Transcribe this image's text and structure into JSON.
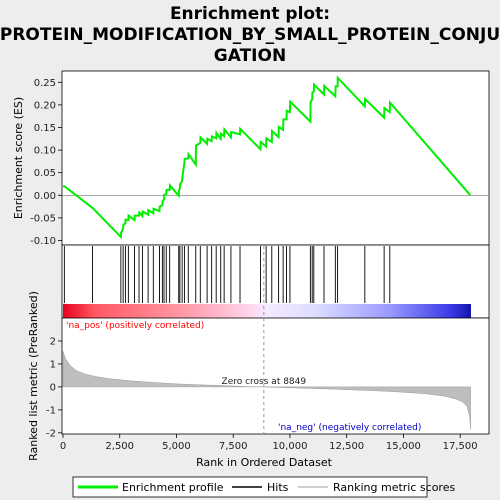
{
  "chart_data": {
    "type": "line",
    "title_lines": [
      "Enrichment plot:",
      "PROTEIN_MODIFICATION_BY_SMALL_PROTEIN_CONJU",
      "GATION"
    ],
    "top_panel": {
      "ylabel": "Enrichment score (ES)",
      "ylim": [
        -0.11,
        0.275
      ],
      "yticks": [
        -0.1,
        -0.05,
        0.0,
        0.05,
        0.1,
        0.15,
        0.2,
        0.25
      ],
      "ytick_labels": [
        "-0.10",
        "-0.05",
        "0.00",
        "0.05",
        "0.10",
        "0.15",
        "0.20",
        "0.25"
      ],
      "series": [
        {
          "name": "Enrichment profile",
          "color": "#00ff00",
          "x": [
            0,
            60,
            1300,
            2550,
            2560,
            2650,
            2660,
            2750,
            2760,
            2880,
            2890,
            3150,
            3160,
            3350,
            3360,
            3500,
            3510,
            3750,
            3760,
            3980,
            3990,
            4250,
            4260,
            4380,
            4390,
            4450,
            4460,
            4550,
            4560,
            4700,
            4710,
            5100,
            5110,
            5150,
            5160,
            5250,
            5260,
            5350,
            5360,
            5520,
            5530,
            5850,
            5860,
            6050,
            6060,
            6350,
            6360,
            6550,
            6560,
            6750,
            6760,
            6950,
            6960,
            7100,
            7110,
            7400,
            7410,
            7800,
            7810,
            8700,
            8710,
            8950,
            8960,
            9200,
            9210,
            9500,
            9510,
            9700,
            9710,
            9850,
            9860,
            10000,
            10010,
            10900,
            10910,
            10980,
            10990,
            11050,
            11060,
            11500,
            11510,
            12000,
            12010,
            12100,
            12110,
            13300,
            13310,
            14150,
            14160,
            14400,
            14410,
            17950
          ],
          "y": [
            0.02,
            0.02,
            -0.028,
            -0.092,
            -0.083,
            -0.074,
            -0.065,
            -0.062,
            -0.054,
            -0.055,
            -0.045,
            -0.055,
            -0.045,
            -0.045,
            -0.038,
            -0.046,
            -0.036,
            -0.043,
            -0.033,
            -0.04,
            -0.03,
            -0.035,
            -0.025,
            -0.022,
            -0.013,
            -0.009,
            0.001,
            0.002,
            0.012,
            0.012,
            0.022,
            -0.001,
            0.01,
            0.016,
            0.025,
            0.031,
            0.04,
            0.072,
            0.08,
            0.082,
            0.091,
            0.068,
            0.11,
            0.116,
            0.128,
            0.114,
            0.125,
            0.12,
            0.13,
            0.126,
            0.138,
            0.125,
            0.136,
            0.131,
            0.146,
            0.128,
            0.14,
            0.135,
            0.147,
            0.102,
            0.118,
            0.108,
            0.126,
            0.118,
            0.142,
            0.129,
            0.151,
            0.145,
            0.168,
            0.168,
            0.187,
            0.184,
            0.207,
            0.163,
            0.207,
            0.212,
            0.228,
            0.229,
            0.245,
            0.223,
            0.242,
            0.219,
            0.241,
            0.241,
            0.26,
            0.197,
            0.213,
            0.172,
            0.193,
            0.184,
            0.205,
            0.0
          ]
        }
      ]
    },
    "hits": {
      "name": "Hits",
      "color": "#000000",
      "x": [
        60,
        1300,
        2550,
        2650,
        2750,
        2880,
        3150,
        3350,
        3500,
        3750,
        3980,
        4250,
        4380,
        4450,
        4550,
        4700,
        5100,
        5150,
        5250,
        5350,
        5520,
        5850,
        6050,
        6350,
        6550,
        6750,
        6950,
        7100,
        7400,
        7800,
        8700,
        8950,
        9200,
        9500,
        9700,
        9850,
        10000,
        10900,
        10980,
        11050,
        11500,
        12000,
        12100,
        13300,
        14150,
        14400
      ]
    },
    "bottom_panel": {
      "name": "Ranking metric scores",
      "color": "#bebebe",
      "ylabel": "Ranked list metric (PreRanked)",
      "xlabel": "Rank in Ordered Dataset",
      "ylim": [
        -2.05,
        3.0
      ],
      "yticks": [
        -2,
        -1,
        0,
        1,
        2
      ],
      "ytick_labels": [
        "-2",
        "-1",
        "0",
        "1",
        "2"
      ],
      "xlim": [
        0,
        18000
      ],
      "xticks": [
        0,
        2500,
        5000,
        7500,
        10000,
        12500,
        15000,
        17500
      ],
      "xtick_labels": [
        "0",
        "2,500",
        "5,000",
        "7,500",
        "10,000",
        "12,500",
        "15,000",
        "17,500"
      ],
      "metric_curve": {
        "x": [
          0,
          100,
          300,
          600,
          1000,
          1500,
          2000,
          3000,
          4000,
          5000,
          6000,
          7000,
          8000,
          8849,
          10000,
          11000,
          12000,
          13000,
          14000,
          15000,
          16000,
          16800,
          17300,
          17600,
          17800,
          17920,
          17960
        ],
        "y": [
          1.55,
          1.25,
          0.95,
          0.7,
          0.55,
          0.44,
          0.36,
          0.26,
          0.19,
          0.13,
          0.09,
          0.06,
          0.02,
          0.0,
          -0.04,
          -0.07,
          -0.1,
          -0.14,
          -0.18,
          -0.23,
          -0.3,
          -0.4,
          -0.52,
          -0.65,
          -0.85,
          -1.3,
          -1.85
        ]
      },
      "zero_cross": 8849,
      "zero_cross_label": "Zero cross at 8849",
      "pos_label": "'na_pos' (positively correlated)",
      "neg_label": "'na_neg' (negatively correlated)",
      "pos_color": "#ff0000",
      "neg_color": "#0000cc"
    },
    "legend": {
      "placement": "bottom",
      "items": [
        "Enrichment profile",
        "Hits",
        "Ranking metric scores"
      ]
    }
  }
}
